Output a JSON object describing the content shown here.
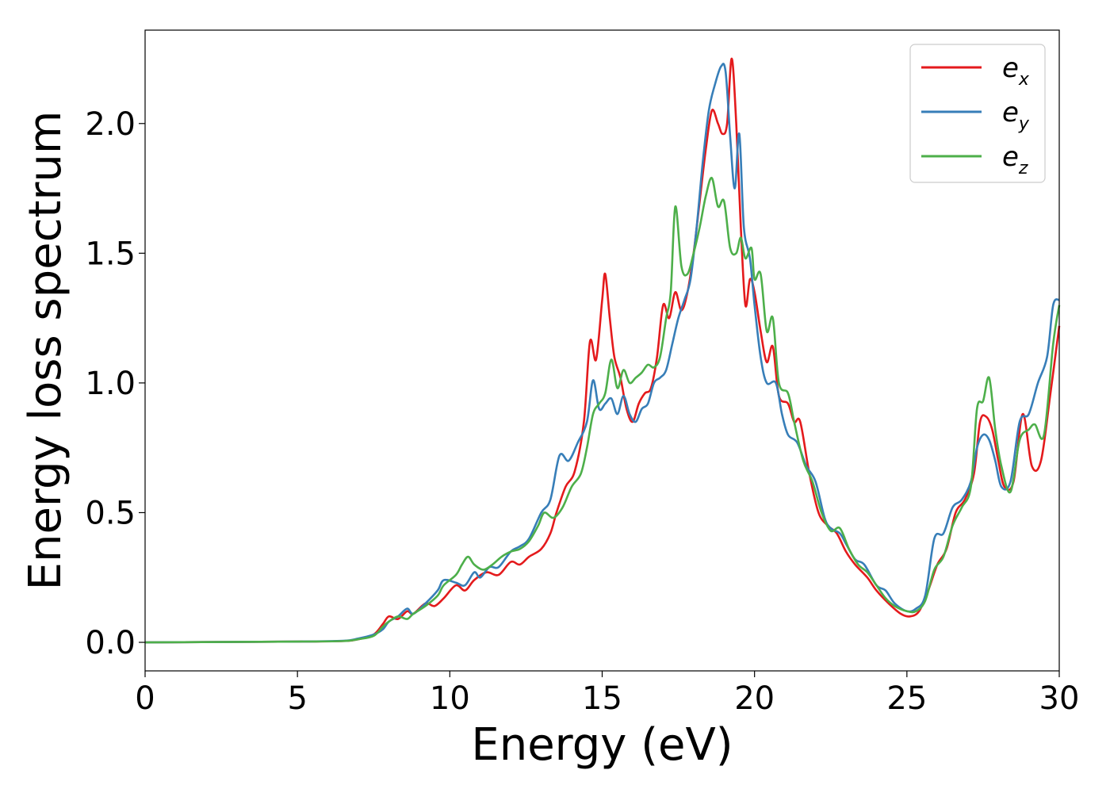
{
  "chart_data": {
    "type": "line",
    "xlabel": "Energy (eV)",
    "ylabel": "Energy loss spectrum",
    "xlim": [
      0,
      30
    ],
    "ylim": [
      -0.11,
      2.36
    ],
    "xticks": [
      0,
      5,
      10,
      15,
      20,
      25,
      30
    ],
    "xtick_labels": [
      "0",
      "5",
      "10",
      "15",
      "20",
      "25",
      "30"
    ],
    "yticks": [
      0.0,
      0.5,
      1.0,
      1.5,
      2.0
    ],
    "ytick_labels": [
      "0.0",
      "0.5",
      "1.0",
      "1.5",
      "2.0"
    ],
    "grid": false,
    "legend_position": "top-right",
    "series": [
      {
        "name": "e",
        "subscript": "x",
        "color": "#e41a1c",
        "points": [
          [
            0,
            0
          ],
          [
            5,
            0.003
          ],
          [
            6.5,
            0.005
          ],
          [
            7,
            0.012
          ],
          [
            7.5,
            0.03
          ],
          [
            7.8,
            0.07
          ],
          [
            8,
            0.1
          ],
          [
            8.3,
            0.09
          ],
          [
            8.6,
            0.12
          ],
          [
            8.8,
            0.11
          ],
          [
            9.2,
            0.15
          ],
          [
            9.5,
            0.14
          ],
          [
            9.8,
            0.17
          ],
          [
            10.2,
            0.22
          ],
          [
            10.5,
            0.2
          ],
          [
            10.8,
            0.24
          ],
          [
            11.2,
            0.27
          ],
          [
            11.6,
            0.26
          ],
          [
            12,
            0.31
          ],
          [
            12.3,
            0.3
          ],
          [
            12.6,
            0.33
          ],
          [
            13,
            0.36
          ],
          [
            13.3,
            0.42
          ],
          [
            13.5,
            0.5
          ],
          [
            13.8,
            0.6
          ],
          [
            14.1,
            0.66
          ],
          [
            14.4,
            0.85
          ],
          [
            14.6,
            1.16
          ],
          [
            14.8,
            1.09
          ],
          [
            15,
            1.32
          ],
          [
            15.1,
            1.42
          ],
          [
            15.25,
            1.25
          ],
          [
            15.4,
            1.1
          ],
          [
            15.6,
            1.02
          ],
          [
            15.8,
            0.9
          ],
          [
            16,
            0.85
          ],
          [
            16.2,
            0.92
          ],
          [
            16.4,
            0.96
          ],
          [
            16.6,
            0.98
          ],
          [
            16.8,
            1.1
          ],
          [
            17,
            1.3
          ],
          [
            17.2,
            1.25
          ],
          [
            17.4,
            1.35
          ],
          [
            17.6,
            1.28
          ],
          [
            17.8,
            1.35
          ],
          [
            18,
            1.5
          ],
          [
            18.2,
            1.7
          ],
          [
            18.4,
            1.9
          ],
          [
            18.6,
            2.05
          ],
          [
            18.8,
            2.0
          ],
          [
            18.95,
            1.96
          ],
          [
            19.1,
            2.0
          ],
          [
            19.25,
            2.25
          ],
          [
            19.4,
            2.0
          ],
          [
            19.55,
            1.6
          ],
          [
            19.7,
            1.3
          ],
          [
            19.85,
            1.4
          ],
          [
            20,
            1.35
          ],
          [
            20.2,
            1.2
          ],
          [
            20.4,
            1.08
          ],
          [
            20.6,
            1.14
          ],
          [
            20.8,
            0.95
          ],
          [
            21.1,
            0.92
          ],
          [
            21.3,
            0.85
          ],
          [
            21.5,
            0.85
          ],
          [
            21.8,
            0.65
          ],
          [
            22.1,
            0.5
          ],
          [
            22.4,
            0.45
          ],
          [
            22.7,
            0.42
          ],
          [
            23,
            0.35
          ],
          [
            23.3,
            0.3
          ],
          [
            23.7,
            0.25
          ],
          [
            24,
            0.2
          ],
          [
            24.4,
            0.15
          ],
          [
            24.8,
            0.11
          ],
          [
            25.1,
            0.1
          ],
          [
            25.4,
            0.12
          ],
          [
            25.7,
            0.2
          ],
          [
            26,
            0.3
          ],
          [
            26.3,
            0.36
          ],
          [
            26.6,
            0.5
          ],
          [
            26.9,
            0.55
          ],
          [
            27.2,
            0.65
          ],
          [
            27.4,
            0.85
          ],
          [
            27.6,
            0.87
          ],
          [
            27.8,
            0.82
          ],
          [
            28,
            0.7
          ],
          [
            28.2,
            0.6
          ],
          [
            28.5,
            0.62
          ],
          [
            28.8,
            0.88
          ],
          [
            29.1,
            0.68
          ],
          [
            29.4,
            0.7
          ],
          [
            29.7,
            0.95
          ],
          [
            30,
            1.22
          ]
        ]
      },
      {
        "name": "e",
        "subscript": "y",
        "color": "#377eb8",
        "points": [
          [
            0,
            0
          ],
          [
            5,
            0.003
          ],
          [
            6.5,
            0.006
          ],
          [
            7,
            0.015
          ],
          [
            7.5,
            0.03
          ],
          [
            7.8,
            0.05
          ],
          [
            8,
            0.08
          ],
          [
            8.3,
            0.1
          ],
          [
            8.6,
            0.13
          ],
          [
            8.8,
            0.11
          ],
          [
            9.2,
            0.15
          ],
          [
            9.6,
            0.2
          ],
          [
            9.8,
            0.24
          ],
          [
            10.2,
            0.23
          ],
          [
            10.5,
            0.22
          ],
          [
            10.8,
            0.27
          ],
          [
            11,
            0.25
          ],
          [
            11.3,
            0.29
          ],
          [
            11.6,
            0.29
          ],
          [
            12,
            0.35
          ],
          [
            12.3,
            0.37
          ],
          [
            12.6,
            0.4
          ],
          [
            13,
            0.5
          ],
          [
            13.3,
            0.55
          ],
          [
            13.6,
            0.72
          ],
          [
            13.9,
            0.7
          ],
          [
            14.2,
            0.77
          ],
          [
            14.5,
            0.85
          ],
          [
            14.7,
            1.01
          ],
          [
            14.9,
            0.9
          ],
          [
            15.1,
            0.92
          ],
          [
            15.3,
            0.94
          ],
          [
            15.5,
            0.88
          ],
          [
            15.7,
            0.95
          ],
          [
            15.9,
            0.88
          ],
          [
            16.1,
            0.85
          ],
          [
            16.3,
            0.9
          ],
          [
            16.5,
            0.92
          ],
          [
            16.7,
            1.0
          ],
          [
            16.9,
            1.02
          ],
          [
            17.1,
            1.05
          ],
          [
            17.3,
            1.15
          ],
          [
            17.5,
            1.25
          ],
          [
            17.7,
            1.32
          ],
          [
            17.9,
            1.4
          ],
          [
            18.1,
            1.6
          ],
          [
            18.3,
            1.85
          ],
          [
            18.5,
            2.05
          ],
          [
            18.7,
            2.15
          ],
          [
            18.9,
            2.22
          ],
          [
            19.05,
            2.2
          ],
          [
            19.2,
            1.95
          ],
          [
            19.35,
            1.75
          ],
          [
            19.5,
            1.96
          ],
          [
            19.65,
            1.6
          ],
          [
            19.85,
            1.48
          ],
          [
            20,
            1.3
          ],
          [
            20.2,
            1.1
          ],
          [
            20.4,
            1.0
          ],
          [
            20.7,
            1.0
          ],
          [
            20.9,
            0.88
          ],
          [
            21.1,
            0.8
          ],
          [
            21.4,
            0.77
          ],
          [
            21.7,
            0.68
          ],
          [
            22,
            0.62
          ],
          [
            22.3,
            0.48
          ],
          [
            22.5,
            0.44
          ],
          [
            22.8,
            0.42
          ],
          [
            23,
            0.38
          ],
          [
            23.3,
            0.32
          ],
          [
            23.6,
            0.3
          ],
          [
            24,
            0.22
          ],
          [
            24.3,
            0.2
          ],
          [
            24.6,
            0.15
          ],
          [
            25,
            0.12
          ],
          [
            25.3,
            0.13
          ],
          [
            25.6,
            0.18
          ],
          [
            25.9,
            0.4
          ],
          [
            26.2,
            0.42
          ],
          [
            26.5,
            0.52
          ],
          [
            26.8,
            0.55
          ],
          [
            27.1,
            0.62
          ],
          [
            27.3,
            0.75
          ],
          [
            27.5,
            0.8
          ],
          [
            27.7,
            0.78
          ],
          [
            27.9,
            0.7
          ],
          [
            28.1,
            0.6
          ],
          [
            28.4,
            0.62
          ],
          [
            28.7,
            0.85
          ],
          [
            29,
            0.88
          ],
          [
            29.3,
            1.0
          ],
          [
            29.6,
            1.1
          ],
          [
            29.8,
            1.3
          ],
          [
            30,
            1.32
          ]
        ]
      },
      {
        "name": "e",
        "subscript": "z",
        "color": "#4daf4a",
        "points": [
          [
            0,
            0
          ],
          [
            5,
            0.003
          ],
          [
            6.5,
            0.005
          ],
          [
            7,
            0.012
          ],
          [
            7.5,
            0.025
          ],
          [
            7.8,
            0.06
          ],
          [
            8,
            0.08
          ],
          [
            8.3,
            0.1
          ],
          [
            8.6,
            0.09
          ],
          [
            8.8,
            0.11
          ],
          [
            9.2,
            0.14
          ],
          [
            9.6,
            0.18
          ],
          [
            9.8,
            0.22
          ],
          [
            10.2,
            0.26
          ],
          [
            10.4,
            0.3
          ],
          [
            10.6,
            0.33
          ],
          [
            10.8,
            0.3
          ],
          [
            11.1,
            0.28
          ],
          [
            11.4,
            0.3
          ],
          [
            11.7,
            0.33
          ],
          [
            12,
            0.35
          ],
          [
            12.3,
            0.36
          ],
          [
            12.6,
            0.39
          ],
          [
            12.9,
            0.45
          ],
          [
            13.1,
            0.5
          ],
          [
            13.4,
            0.48
          ],
          [
            13.7,
            0.52
          ],
          [
            14,
            0.6
          ],
          [
            14.3,
            0.65
          ],
          [
            14.5,
            0.75
          ],
          [
            14.7,
            0.88
          ],
          [
            14.9,
            0.92
          ],
          [
            15.1,
            0.96
          ],
          [
            15.3,
            1.09
          ],
          [
            15.5,
            0.98
          ],
          [
            15.7,
            1.05
          ],
          [
            15.9,
            1.0
          ],
          [
            16.1,
            1.02
          ],
          [
            16.3,
            1.04
          ],
          [
            16.5,
            1.07
          ],
          [
            16.7,
            1.06
          ],
          [
            16.9,
            1.1
          ],
          [
            17.1,
            1.25
          ],
          [
            17.25,
            1.35
          ],
          [
            17.4,
            1.68
          ],
          [
            17.6,
            1.45
          ],
          [
            17.8,
            1.42
          ],
          [
            18,
            1.5
          ],
          [
            18.2,
            1.6
          ],
          [
            18.4,
            1.72
          ],
          [
            18.6,
            1.79
          ],
          [
            18.8,
            1.68
          ],
          [
            19,
            1.7
          ],
          [
            19.2,
            1.52
          ],
          [
            19.4,
            1.5
          ],
          [
            19.55,
            1.56
          ],
          [
            19.7,
            1.48
          ],
          [
            19.9,
            1.52
          ],
          [
            20,
            1.4
          ],
          [
            20.2,
            1.42
          ],
          [
            20.4,
            1.2
          ],
          [
            20.6,
            1.25
          ],
          [
            20.8,
            1.0
          ],
          [
            21.1,
            0.96
          ],
          [
            21.3,
            0.85
          ],
          [
            21.6,
            0.7
          ],
          [
            21.9,
            0.62
          ],
          [
            22.2,
            0.5
          ],
          [
            22.5,
            0.43
          ],
          [
            22.8,
            0.44
          ],
          [
            23.1,
            0.36
          ],
          [
            23.4,
            0.3
          ],
          [
            23.7,
            0.27
          ],
          [
            24,
            0.22
          ],
          [
            24.3,
            0.17
          ],
          [
            24.6,
            0.14
          ],
          [
            25,
            0.12
          ],
          [
            25.3,
            0.12
          ],
          [
            25.6,
            0.16
          ],
          [
            25.9,
            0.28
          ],
          [
            26.2,
            0.33
          ],
          [
            26.5,
            0.45
          ],
          [
            26.8,
            0.52
          ],
          [
            27.1,
            0.6
          ],
          [
            27.3,
            0.9
          ],
          [
            27.5,
            0.93
          ],
          [
            27.7,
            1.02
          ],
          [
            27.9,
            0.82
          ],
          [
            28.1,
            0.68
          ],
          [
            28.4,
            0.58
          ],
          [
            28.7,
            0.78
          ],
          [
            29,
            0.82
          ],
          [
            29.2,
            0.84
          ],
          [
            29.5,
            0.8
          ],
          [
            29.8,
            1.15
          ],
          [
            30,
            1.3
          ]
        ]
      }
    ]
  }
}
